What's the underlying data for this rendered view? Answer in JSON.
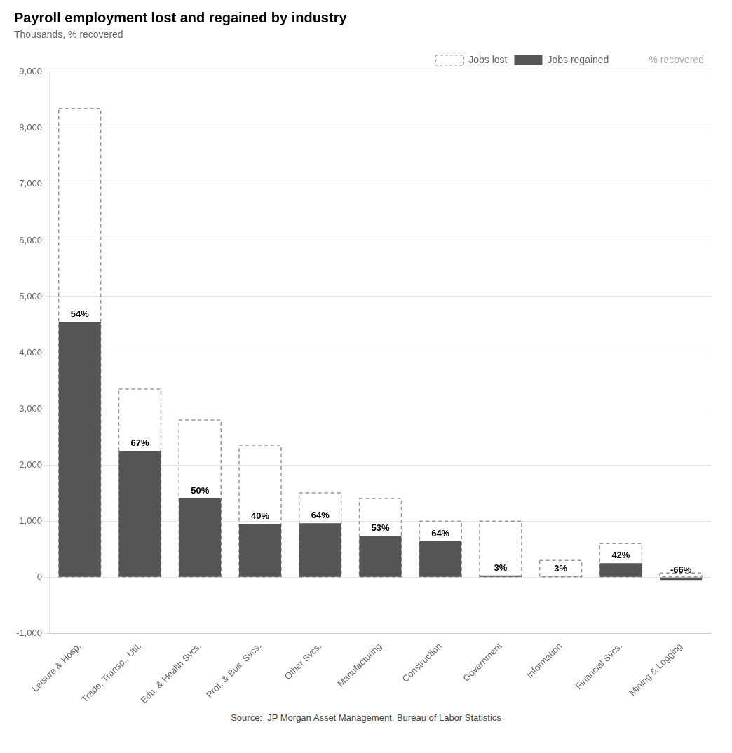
{
  "chart_data": {
    "type": "bar",
    "title": "Payroll employment lost and regained by industry",
    "subtitle": "Thousands, % recovered",
    "source": "Source:  JP Morgan Asset Management, Bureau of Labor Statistics",
    "categories": [
      "Leisure & Hosp.",
      "Trade, Transp., Util.",
      "Edu. & Health Svcs.",
      "Prof. & Bus. Svcs.",
      "Other Svcs.",
      "Manufacturing",
      "Construction",
      "Government",
      "Information",
      "Financial Svcs.",
      "Mining & Logging"
    ],
    "series": [
      {
        "name": "Jobs lost",
        "type": "bar",
        "color": "#999999",
        "line_style": "dashed",
        "values": [
          8350,
          3350,
          2800,
          2350,
          1500,
          1400,
          1000,
          1000,
          300,
          600,
          75
        ]
      },
      {
        "name": "Jobs regained",
        "type": "bar",
        "color": "#555555",
        "values": [
          4550,
          2250,
          1400,
          950,
          960,
          740,
          640,
          30,
          10,
          250,
          -50
        ]
      },
      {
        "name": "% recovered",
        "type": "text",
        "color": "#aaaaaa",
        "values": [
          54,
          67,
          50,
          40,
          64,
          53,
          64,
          3,
          3,
          42,
          -66
        ],
        "value_labels": [
          "54%",
          "67%",
          "50%",
          "40%",
          "64%",
          "53%",
          "64%",
          "3%",
          "3%",
          "42%",
          "-66%"
        ]
      }
    ],
    "ylim": [
      -1000,
      9000
    ],
    "yticks": [
      {
        "value": -1000,
        "label": "-1,000"
      },
      0,
      {
        "value": 1000,
        "label": "1,000"
      },
      {
        "value": 2000,
        "label": "2,000"
      },
      {
        "value": 3000,
        "label": "3,000"
      },
      {
        "value": 4000,
        "label": "4,000"
      },
      {
        "value": 5000,
        "label": "5,000"
      },
      {
        "value": 6000,
        "label": "6,000"
      },
      {
        "value": 7000,
        "label": "7,000"
      },
      {
        "value": 8000,
        "label": "8,000"
      },
      {
        "value": 9000,
        "label": "9,000"
      }
    ],
    "grid": true,
    "legend": "upper right",
    "data_labels": true
  }
}
